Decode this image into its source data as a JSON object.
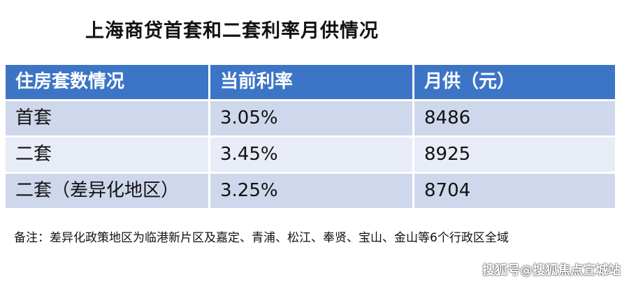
{
  "title": "上海商贷首套和二套利率月供情况",
  "table": {
    "headers": [
      "住房套数情况",
      "当前利率",
      "月供（元）"
    ],
    "rows": [
      [
        "首套",
        "3.05%",
        "8486"
      ],
      [
        "二套",
        "3.45%",
        "8925"
      ],
      [
        "二套（差异化地区）",
        "3.25%",
        "8704"
      ]
    ]
  },
  "note": "备注：差异化政策地区为临港新片区及嘉定、青浦、松江、奉贤、宝山、金山等6个行政区全域",
  "watermark": "搜狐号@搜狐焦点宣城站",
  "colors": {
    "header": "#3d75c6",
    "row_dark": "#cfd7ec",
    "row_light": "#e8ecf6"
  }
}
